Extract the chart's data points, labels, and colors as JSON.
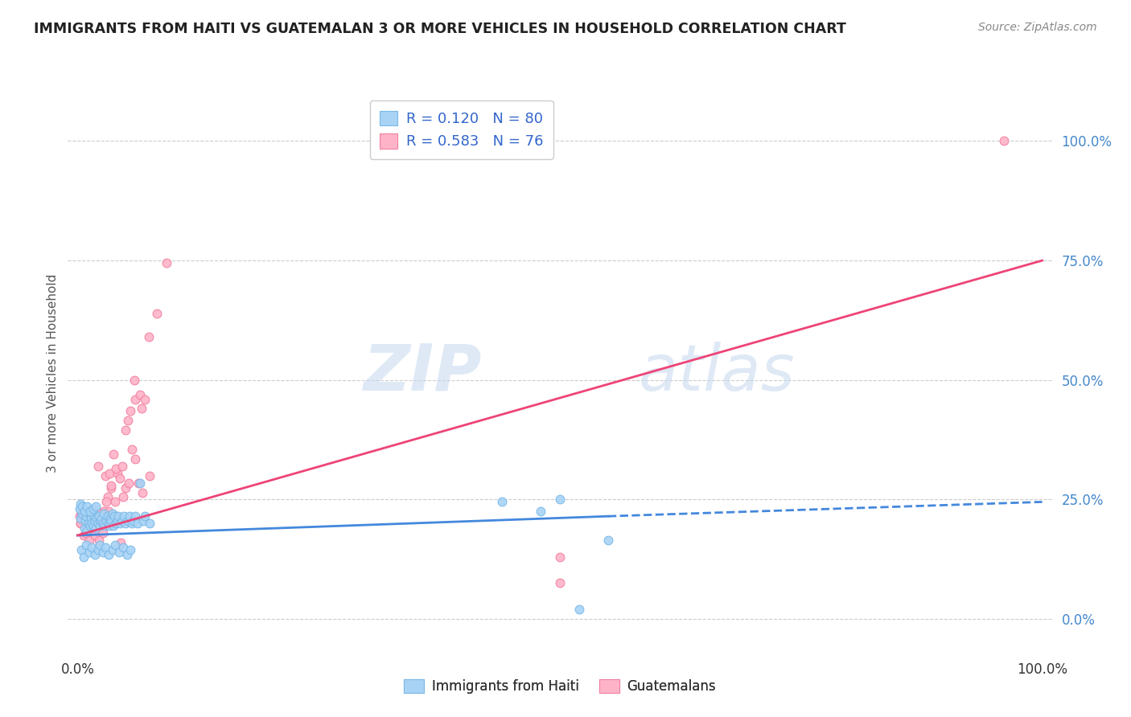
{
  "title": "IMMIGRANTS FROM HAITI VS GUATEMALAN 3 OR MORE VEHICLES IN HOUSEHOLD CORRELATION CHART",
  "source": "Source: ZipAtlas.com",
  "ylabel": "3 or more Vehicles in Household",
  "watermark_zip": "ZIP",
  "watermark_atlas": "atlas",
  "haiti_color": "#a8d3f5",
  "haiti_edge": "#7ab8e8",
  "guatemalan_color": "#ffb3c8",
  "guatemalan_edge": "#f080a0",
  "haiti_line_color": "#4488dd",
  "guatemalan_line_color": "#ee4477",
  "haiti_R": 0.12,
  "haiti_N": 80,
  "guatemalan_R": 0.583,
  "guatemalan_N": 76,
  "legend_label_haiti": "Immigrants from Haiti",
  "legend_label_guatemalan": "Guatemalans",
  "haiti_line_x0": 0.0,
  "haiti_line_y0": 0.175,
  "haiti_line_x1": 0.55,
  "haiti_line_y1": 0.215,
  "haiti_line_dash_x0": 0.55,
  "haiti_line_dash_y0": 0.215,
  "haiti_line_dash_x1": 1.0,
  "haiti_line_dash_y1": 0.245,
  "guat_line_x0": 0.0,
  "guat_line_y0": 0.175,
  "guat_line_x1": 1.0,
  "guat_line_y1": 0.75,
  "ytick_vals": [
    0.0,
    0.25,
    0.5,
    0.75,
    1.0
  ],
  "ytick_labels": [
    "0.0%",
    "25.0%",
    "50.0%",
    "75.0%",
    "100.0%"
  ],
  "ylim_min": -0.07,
  "ylim_max": 1.1,
  "xlim_min": -0.01,
  "xlim_max": 1.01,
  "haiti_pts_x": [
    0.003,
    0.005,
    0.007,
    0.008,
    0.009,
    0.01,
    0.011,
    0.012,
    0.013,
    0.014,
    0.015,
    0.016,
    0.017,
    0.018,
    0.019,
    0.02,
    0.021,
    0.022,
    0.023,
    0.024,
    0.025,
    0.026,
    0.027,
    0.028,
    0.03,
    0.031,
    0.032,
    0.033,
    0.034,
    0.035,
    0.036,
    0.037,
    0.038,
    0.04,
    0.041,
    0.042,
    0.044,
    0.046,
    0.048,
    0.05,
    0.052,
    0.054,
    0.056,
    0.058,
    0.06,
    0.062,
    0.065,
    0.068,
    0.07,
    0.075,
    0.004,
    0.006,
    0.009,
    0.012,
    0.015,
    0.018,
    0.021,
    0.023,
    0.026,
    0.029,
    0.032,
    0.036,
    0.039,
    0.043,
    0.047,
    0.051,
    0.055,
    0.002,
    0.003,
    0.005,
    0.007,
    0.01,
    0.013,
    0.016,
    0.019,
    0.44,
    0.48,
    0.5,
    0.52,
    0.55
  ],
  "haiti_pts_y": [
    0.21,
    0.22,
    0.19,
    0.205,
    0.215,
    0.185,
    0.2,
    0.22,
    0.195,
    0.21,
    0.2,
    0.195,
    0.215,
    0.205,
    0.19,
    0.21,
    0.2,
    0.215,
    0.195,
    0.205,
    0.21,
    0.2,
    0.22,
    0.195,
    0.205,
    0.215,
    0.2,
    0.195,
    0.21,
    0.205,
    0.22,
    0.195,
    0.215,
    0.2,
    0.205,
    0.215,
    0.2,
    0.205,
    0.215,
    0.2,
    0.205,
    0.215,
    0.2,
    0.205,
    0.215,
    0.2,
    0.285,
    0.205,
    0.215,
    0.2,
    0.145,
    0.13,
    0.155,
    0.14,
    0.15,
    0.135,
    0.145,
    0.155,
    0.14,
    0.15,
    0.135,
    0.145,
    0.155,
    0.14,
    0.15,
    0.135,
    0.145,
    0.23,
    0.24,
    0.235,
    0.225,
    0.235,
    0.225,
    0.23,
    0.235,
    0.245,
    0.225,
    0.25,
    0.02,
    0.165
  ],
  "guat_pts_x": [
    0.002,
    0.004,
    0.006,
    0.008,
    0.01,
    0.011,
    0.012,
    0.013,
    0.014,
    0.015,
    0.016,
    0.017,
    0.018,
    0.019,
    0.02,
    0.021,
    0.022,
    0.023,
    0.024,
    0.025,
    0.027,
    0.029,
    0.031,
    0.033,
    0.035,
    0.037,
    0.039,
    0.041,
    0.044,
    0.047,
    0.05,
    0.053,
    0.056,
    0.06,
    0.063,
    0.067,
    0.003,
    0.005,
    0.008,
    0.011,
    0.014,
    0.017,
    0.02,
    0.024,
    0.028,
    0.032,
    0.036,
    0.04,
    0.045,
    0.05,
    0.055,
    0.06,
    0.065,
    0.07,
    0.075,
    0.003,
    0.006,
    0.009,
    0.012,
    0.015,
    0.018,
    0.022,
    0.026,
    0.03,
    0.035,
    0.04,
    0.046,
    0.052,
    0.059,
    0.066,
    0.074,
    0.082,
    0.092,
    0.5,
    0.96,
    0.5
  ],
  "guat_pts_y": [
    0.215,
    0.22,
    0.205,
    0.225,
    0.21,
    0.215,
    0.205,
    0.22,
    0.21,
    0.225,
    0.2,
    0.215,
    0.22,
    0.205,
    0.215,
    0.32,
    0.21,
    0.215,
    0.22,
    0.21,
    0.225,
    0.3,
    0.255,
    0.305,
    0.275,
    0.345,
    0.245,
    0.305,
    0.295,
    0.255,
    0.275,
    0.285,
    0.355,
    0.335,
    0.285,
    0.265,
    0.2,
    0.21,
    0.215,
    0.205,
    0.22,
    0.21,
    0.215,
    0.22,
    0.195,
    0.225,
    0.2,
    0.215,
    0.16,
    0.395,
    0.435,
    0.46,
    0.47,
    0.46,
    0.3,
    0.2,
    0.175,
    0.18,
    0.165,
    0.185,
    0.175,
    0.165,
    0.18,
    0.245,
    0.28,
    0.315,
    0.32,
    0.415,
    0.5,
    0.44,
    0.59,
    0.64,
    0.745,
    0.075,
    1.0,
    0.13
  ]
}
